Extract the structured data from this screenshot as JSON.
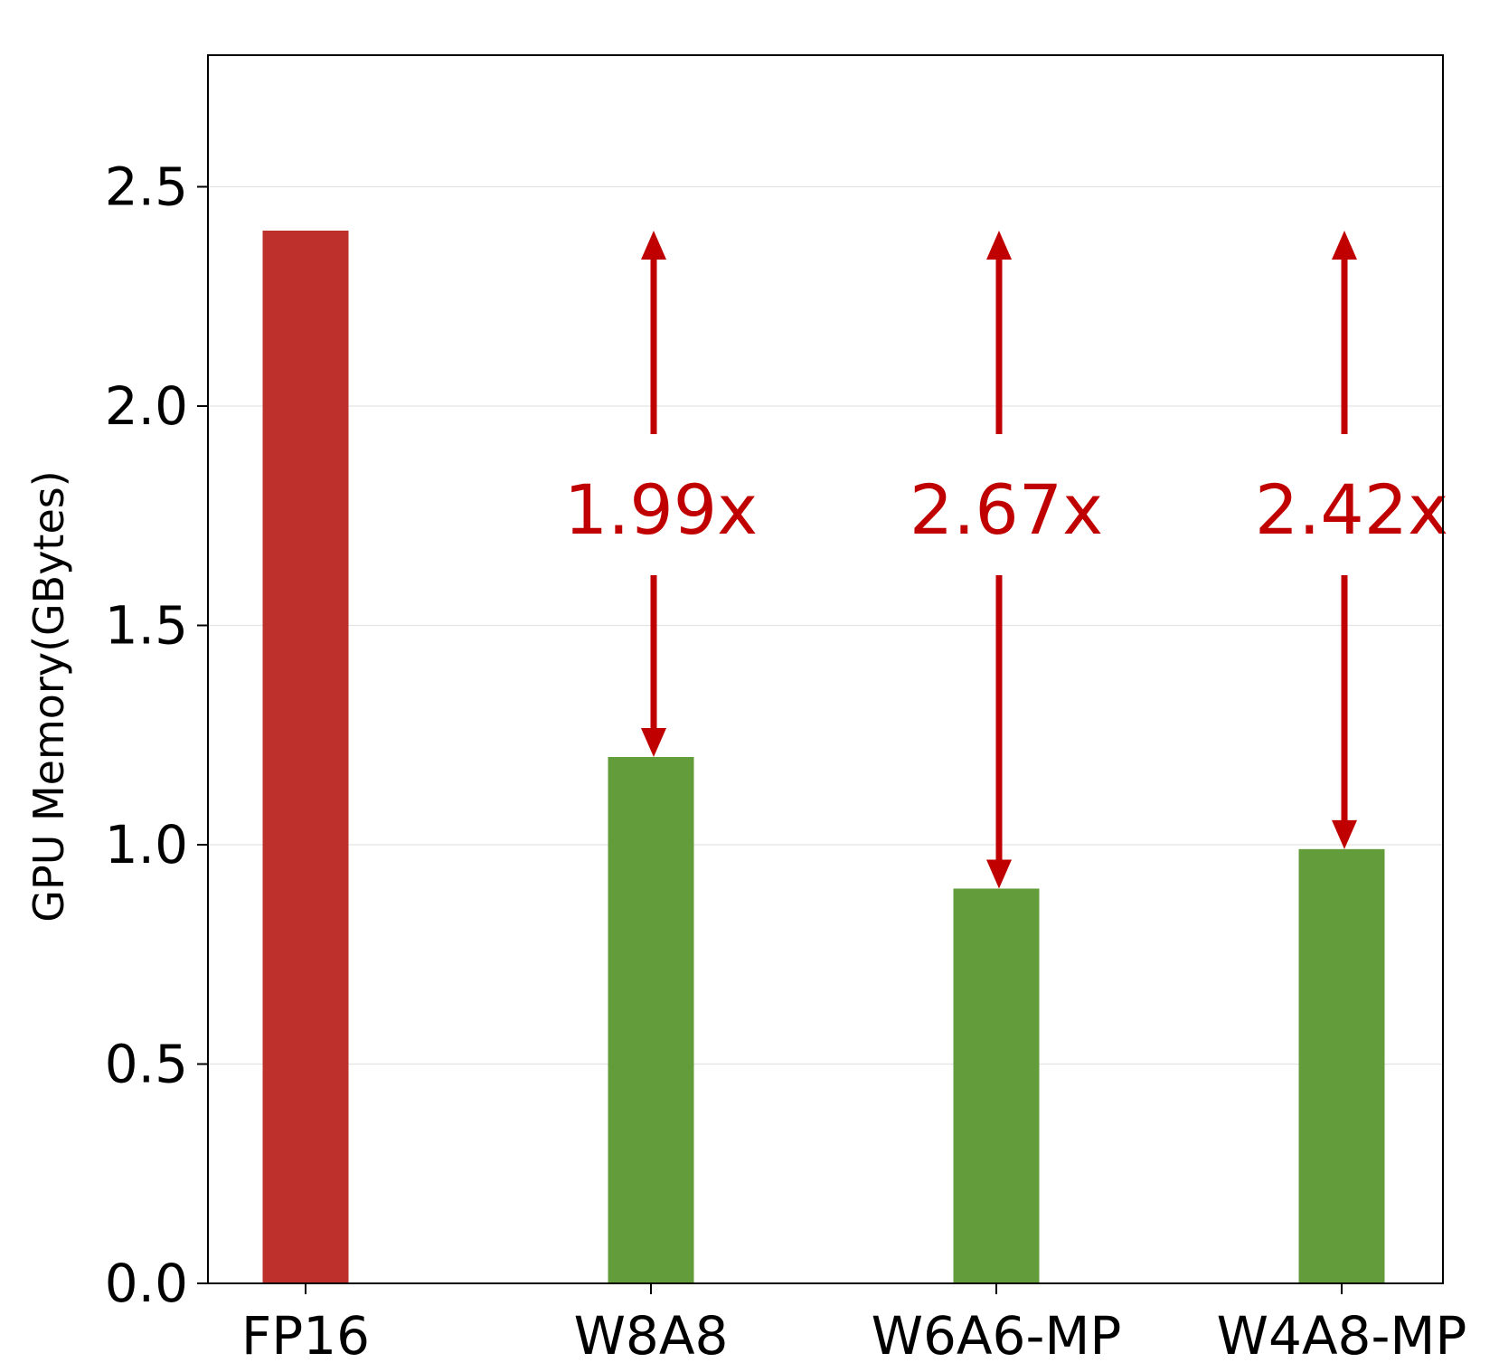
{
  "chart_data": {
    "type": "bar",
    "categories": [
      "FP16",
      "W8A8",
      "W6A6-MP",
      "W4A8-MP"
    ],
    "values": [
      2.4,
      1.2,
      0.9,
      0.99
    ],
    "bar_colors": [
      "#be302b",
      "#639c3a",
      "#639c3a",
      "#639c3a"
    ],
    "title": "",
    "xlabel": "",
    "ylabel": "GPU Memory(GBytes)",
    "ylim": [
      0,
      2.8
    ],
    "yticks": [
      0.0,
      0.5,
      1.0,
      1.5,
      2.0,
      2.5
    ],
    "ytick_labels": [
      "0.0",
      "0.5",
      "1.0",
      "1.5",
      "2.0",
      "2.5"
    ],
    "grid": "horizontal",
    "annotation_color": "#c00000",
    "annotations": [
      {
        "category": "W8A8",
        "label": "1.99x",
        "from": 2.4,
        "to": 1.2
      },
      {
        "category": "W6A6-MP",
        "label": "2.67x",
        "from": 2.4,
        "to": 0.9
      },
      {
        "category": "W4A8-MP",
        "label": "2.42x",
        "from": 2.4,
        "to": 0.99
      }
    ]
  }
}
